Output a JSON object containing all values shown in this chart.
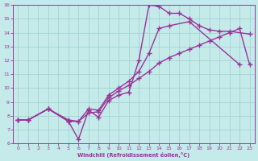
{
  "xlabel": "Windchill (Refroidissement éolien,°C)",
  "xlim": [
    -0.5,
    23.5
  ],
  "ylim": [
    6,
    16
  ],
  "xticks": [
    0,
    1,
    2,
    3,
    4,
    5,
    6,
    7,
    8,
    9,
    10,
    11,
    12,
    13,
    14,
    15,
    16,
    17,
    18,
    19,
    20,
    21,
    22,
    23
  ],
  "yticks": [
    6,
    7,
    8,
    9,
    10,
    11,
    12,
    13,
    14,
    15,
    16
  ],
  "background_color": "#c5eaea",
  "grid_color": "#9ecece",
  "line_color": "#993399",
  "line_width": 1.0,
  "marker_size": 4.5,
  "curve1_x": [
    0,
    1,
    3,
    5,
    6,
    7,
    8,
    9,
    10,
    11,
    12,
    13,
    14,
    15,
    16,
    17,
    18,
    19,
    20,
    21,
    23
  ],
  "curve1_y": [
    7.7,
    7.7,
    8.5,
    7.6,
    6.3,
    8.4,
    7.9,
    9.1,
    9.5,
    9.7,
    12.0,
    16.0,
    15.9,
    15.4,
    15.4,
    15.0,
    14.5,
    14.2,
    14.1,
    14.1,
    13.9
  ],
  "curve2_x": [
    0,
    1,
    3,
    5,
    6,
    7,
    8,
    9,
    10,
    11,
    12,
    13,
    14,
    15,
    17,
    22
  ],
  "curve2_y": [
    7.7,
    7.7,
    8.5,
    7.7,
    7.6,
    8.5,
    8.4,
    9.5,
    10.0,
    10.5,
    11.2,
    12.5,
    14.3,
    14.5,
    14.8,
    11.7
  ],
  "curve3_x": [
    0,
    1,
    3,
    5,
    6,
    7,
    8,
    9,
    10,
    11,
    12,
    13,
    14,
    15,
    16,
    17,
    18,
    19,
    20,
    21,
    22,
    23
  ],
  "curve3_y": [
    7.7,
    7.7,
    8.5,
    7.6,
    7.6,
    8.2,
    8.3,
    9.3,
    9.8,
    10.2,
    10.7,
    11.2,
    11.8,
    12.2,
    12.5,
    12.8,
    13.1,
    13.4,
    13.7,
    14.0,
    14.3,
    11.7
  ]
}
